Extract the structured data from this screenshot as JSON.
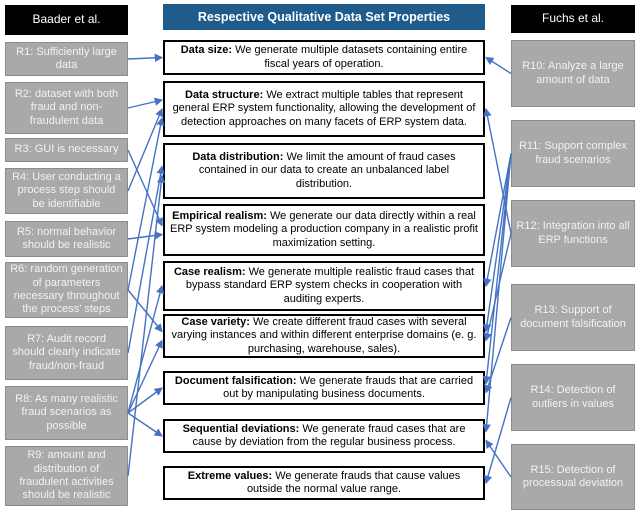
{
  "colors": {
    "arrow": "#4472C4",
    "center_header_bg": "#1F5C8B",
    "side_header_bg": "#000000",
    "gray_box_bg": "#A9A9A9",
    "prop_border": "#000000"
  },
  "left": {
    "header": "Baader et al.",
    "items": [
      {
        "id": "R1",
        "label": "R1: Sufficiently large data"
      },
      {
        "id": "R2",
        "label": "R2: dataset with both fraud and non-fraudulent data"
      },
      {
        "id": "R3",
        "label": "R3: GUI is necessary"
      },
      {
        "id": "R4",
        "label": "R4: User conducting a process step should be identifiable"
      },
      {
        "id": "R5",
        "label": "R5: normal behavior should be realistic"
      },
      {
        "id": "R6",
        "label": "R6: random generation of parameters necessary throughout the process' steps"
      },
      {
        "id": "R7",
        "label": "R7: Audit record should clearly indicate fraud/non-fraud"
      },
      {
        "id": "R8",
        "label": "R8: As many realistic fraud scenarios as possible"
      },
      {
        "id": "R9",
        "label": "R9: amount and distribution of fraudulent activities should be realistic"
      }
    ]
  },
  "center": {
    "header": "Respective Qualitative Data Set Properties",
    "properties": [
      {
        "id": "data-size",
        "term": "Data size:",
        "desc": "We generate multiple datasets containing entire fiscal years of operation."
      },
      {
        "id": "data-structure",
        "term": "Data structure:",
        "desc": "We extract multiple tables that represent general ERP system functionality, allowing the development of detection approaches on many facets of ERP system data."
      },
      {
        "id": "data-distribution",
        "term": "Data distribution:",
        "desc": "We limit the amount of fraud cases contained in our data to create an unbalanced label distribution."
      },
      {
        "id": "empirical-realism",
        "term": "Empirical realism:",
        "desc": "We generate our data directly within a real ERP system modeling a production company in a realistic profit maximization setting."
      },
      {
        "id": "case-realism",
        "term": "Case realism:",
        "desc": "We generate multiple realistic fraud cases that bypass standard ERP system checks in cooperation with auditing experts."
      },
      {
        "id": "case-variety",
        "term": "Case variety:",
        "desc": "We create different fraud cases with several varying instances and within different enterprise domains (e. g. purchasing, warehouse, sales)."
      },
      {
        "id": "document-falsification",
        "term": "Document falsification:",
        "desc": "We generate frauds that are carried out by manipulating business documents."
      },
      {
        "id": "sequential-deviations",
        "term": "Sequential deviations:",
        "desc": "We generate fraud cases that are cause by deviation from the regular business process."
      },
      {
        "id": "extreme-values",
        "term": "Extreme values:",
        "desc": "We generate frauds that cause values outside the normal value range."
      }
    ]
  },
  "right": {
    "header": "Fuchs et al.",
    "items": [
      {
        "id": "R10",
        "label": "R10: Analyze a large amount of data"
      },
      {
        "id": "R11",
        "label": "R11: Support complex fraud scenarios"
      },
      {
        "id": "R12",
        "label": "R12: Integration into all ERP functions"
      },
      {
        "id": "R13",
        "label": "R13: Support of document falsification"
      },
      {
        "id": "R14",
        "label": "R14: Detection of outliers in values"
      },
      {
        "id": "R15",
        "label": "R15: Detection of processual deviation"
      }
    ]
  },
  "connections": [
    {
      "from": "R1",
      "to": "data-size"
    },
    {
      "from": "R2",
      "to": "data-structure"
    },
    {
      "from": "R3",
      "to": "empirical-realism"
    },
    {
      "from": "R4",
      "to": "data-structure"
    },
    {
      "from": "R5",
      "to": "empirical-realism"
    },
    {
      "from": "R6",
      "to": "data-structure"
    },
    {
      "from": "R6",
      "to": "case-variety"
    },
    {
      "from": "R7",
      "to": "data-distribution"
    },
    {
      "from": "R8",
      "to": "case-realism"
    },
    {
      "from": "R8",
      "to": "case-variety"
    },
    {
      "from": "R8",
      "to": "document-falsification"
    },
    {
      "from": "R8",
      "to": "sequential-deviations"
    },
    {
      "from": "R9",
      "to": "data-distribution"
    },
    {
      "from": "R10",
      "to": "data-size"
    },
    {
      "from": "R11",
      "to": "case-realism"
    },
    {
      "from": "R11",
      "to": "case-variety"
    },
    {
      "from": "R11",
      "to": "document-falsification"
    },
    {
      "from": "R11",
      "to": "sequential-deviations"
    },
    {
      "from": "R12",
      "to": "data-structure"
    },
    {
      "from": "R12",
      "to": "case-variety"
    },
    {
      "from": "R13",
      "to": "document-falsification"
    },
    {
      "from": "R14",
      "to": "extreme-values"
    },
    {
      "from": "R15",
      "to": "sequential-deviations"
    }
  ]
}
